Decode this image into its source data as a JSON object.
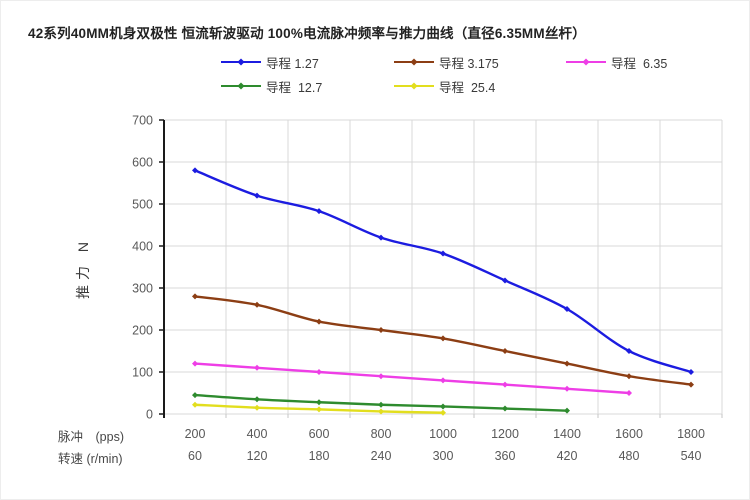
{
  "title": "42系列40MM机身双极性 恒流斩波驱动 100%电流脉冲频率与推力曲线（直径6.35MM丝杆）",
  "legend": {
    "items": [
      {
        "label": "导程 1.27",
        "color": "#1c1ce0"
      },
      {
        "label": "导程 3.175",
        "color": "#8c3e14"
      },
      {
        "label": "导程  6.35",
        "color": "#ee3ee6"
      },
      {
        "label": "导程  12.7",
        "color": "#2e8b2e"
      },
      {
        "label": "导程  25.4",
        "color": "#e2de1e"
      }
    ]
  },
  "axes": {
    "y_title": "推力 N",
    "x_row1_label": "脉冲　(pps)",
    "x_row2_label": "转速 (r/min)",
    "y_ticks": [
      0,
      100,
      200,
      300,
      400,
      500,
      600,
      700
    ]
  },
  "chart_data": {
    "type": "line",
    "title": "42系列40MM机身双极性 恒流斩波驱动 100%电流脉冲频率与推力曲线（直径6.35MM丝杆）",
    "xlabel_row1": "脉冲 (pps)",
    "xlabel_row2": "转速 (r/min)",
    "ylabel": "推力 N",
    "ylim": [
      0,
      700
    ],
    "grid": true,
    "legend_position": "top",
    "x_pulse_pps": [
      200,
      400,
      600,
      800,
      1000,
      1200,
      1400,
      1600,
      1800
    ],
    "x_speed_rpm": [
      60,
      120,
      180,
      240,
      300,
      360,
      420,
      480,
      540
    ],
    "series": [
      {
        "name": "导程 1.27",
        "color": "#1c1ce0",
        "values": [
          580,
          520,
          483,
          420,
          382,
          318,
          250,
          150,
          100
        ]
      },
      {
        "name": "导程 3.175",
        "color": "#8c3e14",
        "values": [
          280,
          260,
          220,
          200,
          180,
          150,
          120,
          90,
          70
        ]
      },
      {
        "name": "导程 6.35",
        "color": "#ee3ee6",
        "values": [
          120,
          110,
          100,
          90,
          80,
          70,
          60,
          50
        ]
      },
      {
        "name": "导程 12.7",
        "color": "#2e8b2e",
        "values": [
          45,
          35,
          28,
          22,
          18,
          13,
          8
        ]
      },
      {
        "name": "导程 25.4",
        "color": "#e2de1e",
        "values": [
          22,
          15,
          11,
          6,
          3
        ]
      }
    ],
    "colors": {
      "gridline": "#d9d9d9",
      "y_axis_line": "#1a1a1a",
      "tick_label": "#595959"
    }
  }
}
